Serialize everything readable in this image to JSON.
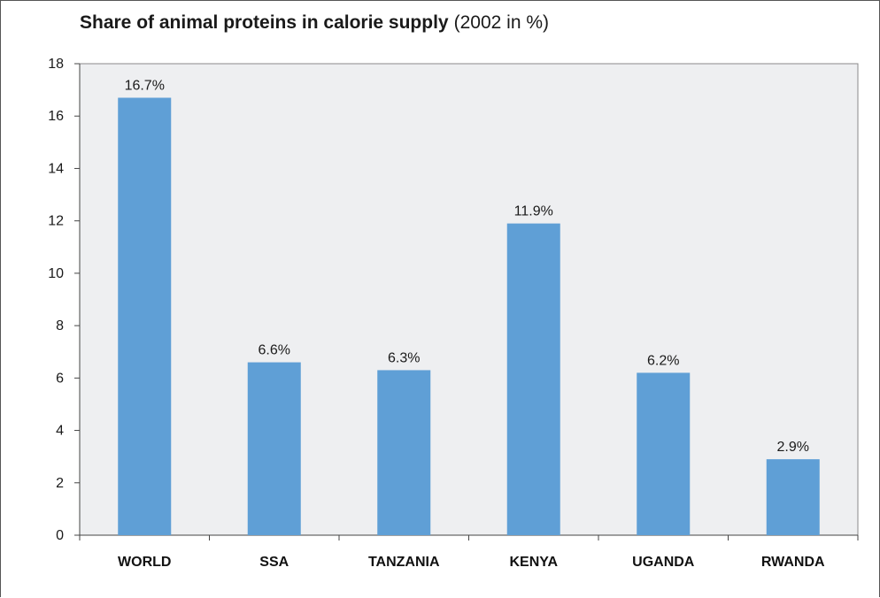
{
  "chart_data": {
    "type": "bar",
    "title": "Share of animal proteins in calorie supply",
    "subtitle": "(2002 in %)",
    "categories": [
      "WORLD",
      "SSA",
      "TANZANIA",
      "KENYA",
      "UGANDA",
      "RWANDA"
    ],
    "values": [
      16.7,
      6.6,
      6.3,
      11.9,
      6.2,
      2.9
    ],
    "data_labels": [
      "16.7%",
      "6.6%",
      "6.3%",
      "11.9%",
      "6.2%",
      "2.9%"
    ],
    "yticks": [
      "0",
      "2",
      "4",
      "6",
      "8",
      "10",
      "12",
      "14",
      "16",
      "18"
    ],
    "ylim": [
      0,
      18
    ],
    "xlabel": "",
    "ylabel": "",
    "grid": false,
    "legend": "none",
    "colors": {
      "bar": "#5f9fd6",
      "plot_bg": "#eeeff1",
      "axis": "#444444"
    }
  }
}
